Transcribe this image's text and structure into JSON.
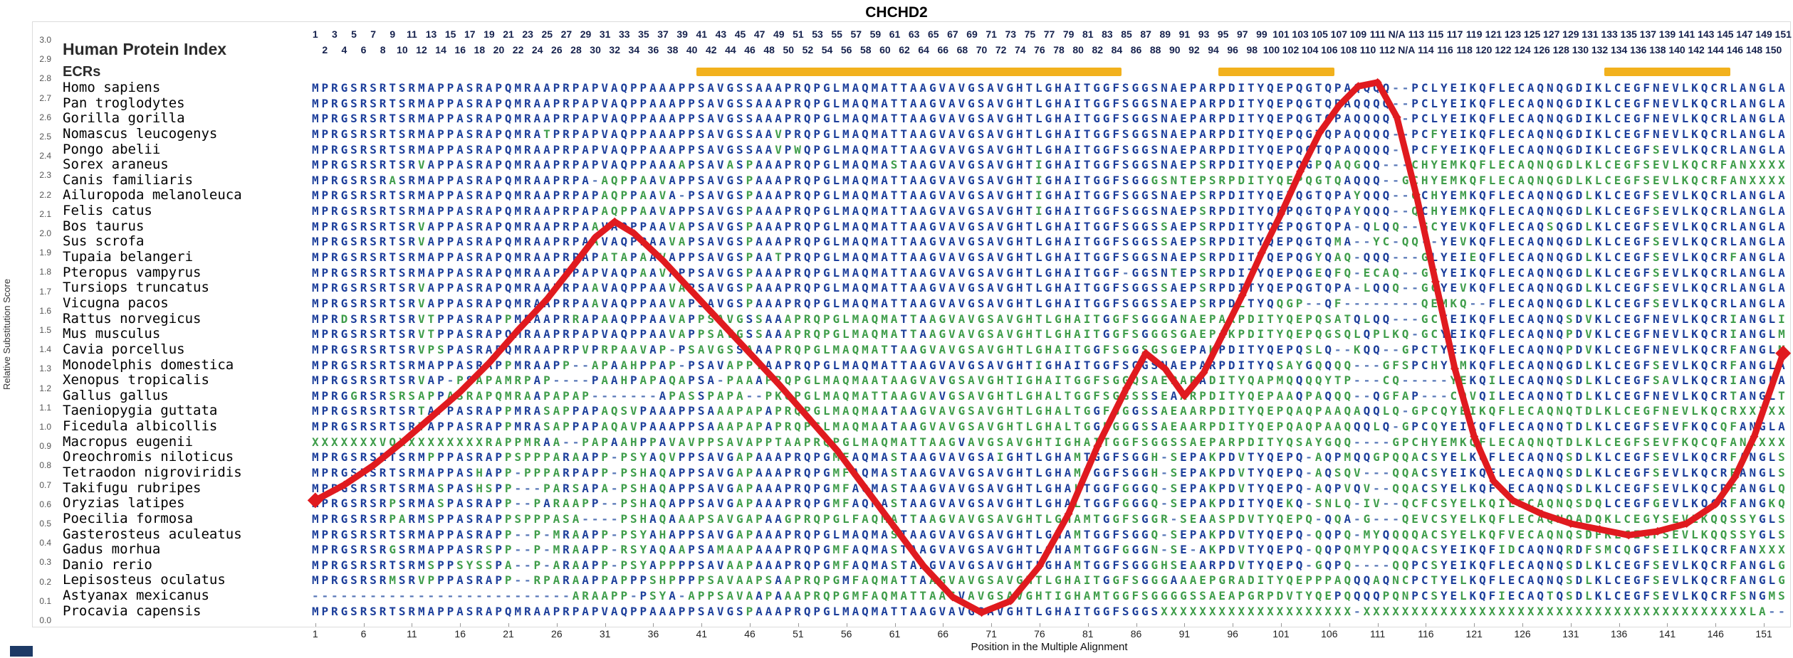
{
  "title": "CHCHD2",
  "header": {
    "index_label": "Human Protein Index",
    "ecr_label": "ECRs"
  },
  "y_axis": {
    "label": "Relative Substitution Score",
    "ticks": [
      "3.0",
      "2.9",
      "2.8",
      "2.7",
      "2.6",
      "2.5",
      "2.4",
      "2.3",
      "2.2",
      "2.1",
      "2.0",
      "1.9",
      "1.8",
      "1.7",
      "1.6",
      "1.5",
      "1.4",
      "1.3",
      "1.2",
      "1.1",
      "1.0",
      "0.9",
      "0.8",
      "0.7",
      "0.6",
      "0.5",
      "0.4",
      "0.3",
      "0.2",
      "0.1",
      "0.0"
    ]
  },
  "x_axis": {
    "label": "Position in the Multiple Alignment",
    "ticks": [
      1,
      6,
      11,
      16,
      21,
      26,
      31,
      36,
      41,
      46,
      51,
      56,
      61,
      66,
      71,
      76,
      81,
      86,
      91,
      96,
      101,
      106,
      111,
      116,
      121,
      126,
      131,
      136,
      141,
      146,
      151
    ]
  },
  "position_numbers": {
    "top": [
      "1",
      "3",
      "5",
      "7",
      "9",
      "11",
      "13",
      "15",
      "17",
      "19",
      "21",
      "23",
      "25",
      "27",
      "29",
      "31",
      "33",
      "35",
      "37",
      "39",
      "41",
      "43",
      "45",
      "47",
      "49",
      "51",
      "53",
      "55",
      "57",
      "59",
      "61",
      "63",
      "65",
      "67",
      "69",
      "71",
      "73",
      "75",
      "77",
      "79",
      "81",
      "83",
      "85",
      "87",
      "89",
      "91",
      "93",
      "95",
      "97",
      "99",
      "101",
      "103",
      "105",
      "107",
      "109",
      "111",
      "N/A",
      "113",
      "115",
      "117",
      "119",
      "121",
      "123",
      "125",
      "127",
      "129",
      "131",
      "133",
      "135",
      "137",
      "139",
      "141",
      "143",
      "145",
      "147",
      "149",
      "151"
    ],
    "bottom": [
      "2",
      "4",
      "6",
      "8",
      "10",
      "12",
      "14",
      "16",
      "18",
      "20",
      "22",
      "24",
      "26",
      "28",
      "30",
      "32",
      "34",
      "36",
      "38",
      "40",
      "42",
      "44",
      "46",
      "48",
      "50",
      "52",
      "54",
      "56",
      "58",
      "60",
      "62",
      "64",
      "66",
      "68",
      "70",
      "72",
      "74",
      "76",
      "78",
      "80",
      "82",
      "84",
      "86",
      "88",
      "90",
      "92",
      "94",
      "96",
      "98",
      "100",
      "102",
      "104",
      "106",
      "108",
      "110",
      "112",
      "N/A",
      "114",
      "116",
      "118",
      "120",
      "122",
      "124",
      "126",
      "128",
      "130",
      "132",
      "134",
      "136",
      "138",
      "140",
      "142",
      "144",
      "146",
      "148",
      "150"
    ]
  },
  "ecr_regions": [
    {
      "start_col": 41,
      "end_col": 84
    },
    {
      "start_col": 95,
      "end_col": 106
    },
    {
      "start_col": 135,
      "end_col": 147
    }
  ],
  "alignment": {
    "rows": [
      {
        "species": "Homo sapiens",
        "sequence": "MPRGSRSRTSRMAPPASRAPQMRAAPRPAPVAQPPAAAPPSAVGSSAAAPRQPGLMAQMATTAAGVAVGSAVGHTLGHAITGGFSGGSNAEPARPDITYQEPQGTQPAQQQQ--PCLYEIKQFLECAQNQGDIKLCEGFNEVLKQCRLANGLA"
      },
      {
        "species": "Pan troglodytes",
        "sequence": "MPRGSRSRTSRMAPPASRAPQMRAAPRPAPVAQPPAAAPPSAVGSSAAAPRQPGLMAQMATTAAGVAVGSAVGHTLGHAITGGFSGGSNAEPARPDITYQEPQGTQPAQQQQ--PCLYEIKQFLECAQNQGDIKLCEGFNEVLKQCRLANGLA"
      },
      {
        "species": "Gorilla gorilla",
        "sequence": "MPRGSRSRTSRMAPPASRAPQMRAAPRPAPVAQPPAAAPPSAVGSSAAAPRQPGLMAQMATTAAGVAVGSAVGHTLGHAITGGFSGGSNAEPARPDITYQEPQGTQPAQQQQ--PCLYEIKQFLECAQNQGDIKLCEGFNEVLKQCRLANGLA"
      },
      {
        "species": "Nomascus leucogenys",
        "sequence": "MPRGSRSRTSRMAPPASRAPQMRATPRPAPVAQPPAAAPPSAVGSSAAVPRQPGLMAQMATTAAGVAVGSAVGHTLGHAITGGFSGGSNAEPARPDITYQEPQGTQPAQQQQ--PCFYEIKQFLECAQNQGDIKLCEGFNEVLKQCRLANGLA"
      },
      {
        "species": "Pongo abelii",
        "sequence": "MPRGSRSRTSRMAPPASRAPQMRAAPRPAPVAQPPAAAPPSAVGSSAAVPWQPGLMAQMATTAAGVAVGSAVGHTLGHAITGGFSGGSNAEPARPDITYQEPQGTQPAQQQQ--PCFYEIKQFLECAQNQGDIKLCEGFSEVLKQCRLANGLA"
      },
      {
        "species": "Sorex araneus",
        "sequence": "MPRGSRSRTSRVAPPASRAPQMRAAPRPAPVAQPPAAAAPSAVASPAAAPRQPGLMAQMASTAAGVAVGSAVGHTIGHAITGGFSGGSNAEPSRPDITYQEPQGPQAQGQQ---CHYEMKQFLECAQNQGDLKLCEGFSEVLKQCRFANXXXX"
      },
      {
        "species": "Canis familiaris",
        "sequence": "MPRGSRSRASRMAPPASRAPQMRAAPRPA-AQPPAAVAPPSAVGSPAAAPRQPGLMAQMATTAAGVAVGSAVGHTIGHAITGGFSGGGSNTEPSRPDITYQEPQGTQAYQQQ--GCHYEMKQFLECAQNQGDLKLCEGFSEVLKQCRFANXXXX"
      },
      {
        "species": "Ailuropoda melanoleuca",
        "sequence": "MPRGSRSRTSRMAPPASRAPQMRAAPRPAPAQPPAAVA-PSAVGSPAAAPRQPGLMAQMATTAAGVAVGSAVGHTIGHAITGGFSGGSNAEPSRPDITYQEPQGTQPAYQQQ--QCHYEMKQFLECAQNQGDLKLCEGFSEVLKQCRLANGLA"
      },
      {
        "species": "Felis catus",
        "sequence": "MPRGSRSRTSRMAPPASRAPQMRAAPRPAPAQPPAAVAPPSAVGSPAAAPRQPGLMAQMATTAAGVAVGSAVGHTIGHAITGGFSGGSNAEPSRPDITYQEPQGTQPAYQQQ--QCHYEMKQFLECAQNQGDLKLCEGFSEVLKQCRLANGLA"
      },
      {
        "species": "Bos taurus",
        "sequence": "MPRGSRSRTSRVAPPASRAPQMRAAPRPAAVAQPPAAVAPSAVGSPAAAPRQPGLMAQMATTAAGVAVGSAVGHTLGHAITGGFSGGSSAEPSRPDITYQEPQGTQPAQLQQ--GCYEVKQFLECAQSQGDLKLCEGFSEVLKQCRLANGLA"
      },
      {
        "species": "Sus scrofa",
        "sequence": "MPRGSRSRTSRVAPPASRAPQMRAAPRPAAVAQPPAAVAPSAVGSPAAAPRQPGLMAQMATTAAGVAVGSAVGHTLGHAITGGFSGGSSAEPSRPDITYQEPQGTQMAYC-QQ--YEVKQFLECAQNQGDLKLCEGFSEVLKQCRLANGLA"
      },
      {
        "species": "Tupaia belangeri",
        "sequence": "MPRGSRSRTSRMAPPASRAPQMRAAPRPAPATAPAAVAPPSAVGSPAATPRQPGLMAQMATTAAGVAVGSAVGHTLGHAITGGFSGGSNAEPSRPDITYQEPQGYQAQQQQ---GLYEIEQFLECAQNQGDLKLCEGFSEVLKQCRFANGLA"
      },
      {
        "species": "Pteropus vampyrus",
        "sequence": "MPRGSRSRTSRMAPPASRAPQMRAAPRPAPVAQPAAVAPPSAVGSPAAAPRQPGLMAQMATTAAGVAVGSAVGHTLGHAITGGF-GGSNTEPSRPDITYQEPQGEQFQ-ECAQ--GCYEIKQFLECAQNQGDLKLCEGFSEVLKQCRLANGLA"
      },
      {
        "species": "Tursiops truncatus",
        "sequence": "MPRGSRSRTSRVAPPASRAPQMRAAPRPAAVAQPPAAVAPSAVGSPAAAPRQPGLMAQMATTAAGVAVGSAVGHTLGHAITGGFSGGSSAEPSRPDITYQEPQGTQPALQQQ--GCYEVKQFLECAQNQGDLKLCEGFSEVLKQCRLANGLA"
      },
      {
        "species": "Vicugna pacos",
        "sequence": "MPRGSRSRTSRVAPPASRAPQMRAAPRPAAVAQPPAAVAPSAVGSPAAAPRQPGLMAQMATTAAGVAVGSAVGHTLGHAITGGFSGGSSAEPSRPDLTYQQGP--QF-QEMKQ--FLECAQNQGDLKLCEGFSEVLKQCRLANGLA"
      },
      {
        "species": "Rattus norvegicus",
        "sequence": "MPRDSRSRTSRVTPPASRAPPMRAAPRRAPAAQPPAAVAPPSAVGSSAAAPRQPGLMAQMATTAAGVAVGSAVGHTLGHAITGGFSGGGANAEPARPDITYQEPQSATQLQQ---GCYEIKQFLECAQNQSDVKLCEGFNEVLKQCRIANGLI"
      },
      {
        "species": "Mus musculus",
        "sequence": "MPRGSRSRTSRVTPPASRAPQMRAAPRPAPVAQPPAAVAPPSAVGSSAAAPRQPGLMAQMATTAAGVAVGSAVGHTLGHAITGGFSGGGSGAEPAKPDITYQEPQGSQLQPLKQ-GCYEIKQFLECAQNQPDVKLCEGFNEVLKQCRIANGLM"
      },
      {
        "species": "Cavia porcellus",
        "sequence": "MPRGSRSRTSRVPSPASRAPQMRAAPRPVPRPAAVAP-PSAVGSSAAAPRQPGLMAQMATTAAGVAVGSAVGHTLGHAITGGFSGGSGSGEPAKPDITYQEPQSLQ--PLKQQ--GPCTYEIKQFLECAQNQPDVKLCEGFNEVLKQCRFANGLM"
      },
      {
        "species": "Monodelphis domestica",
        "sequence": "MPRGSRSRTSRMAPPASRAPPMRAAPP--APAAHPPAP-PSAVAPPTAAPRQPGLMAQMATTAAGVAVGSAVGHTIGHAITGGFSGGSNAEPARPDITYQSAYGQQQQQ----GFSPCHYEMKQFLECAQNQGDLKLCEGFSEVLKQCRFANGLA"
      },
      {
        "species": "Xenopus tropicalis",
        "sequence": "MPRGSRSRTSRVAP-PSAPAMRPAP----PAAHPAPAQAPSA-PAAAPRQPGLMAQMAATAAGVAVGSAVGHTIGHAITGGFSGGQSAEPARADITYQAPMQQQQYTPCQ-----YEKQILECAQNQSDLKLCEGFSAVLKQCRIANGLA"
      },
      {
        "species": "Gallus gallus",
        "sequence": "MPRGGRSRSRSAPPASRAPQMRAAPAPAP-------APASSPAPA--PKQPGLMAQMATTAAGVAVGSAVGHTLGHALTGGFSGGSSSEAARPDITYQEPAAQPAQQQQGFAP---CQVQILECAQNQTDLKLCEGFNEVLKQCRTANGLT"
      },
      {
        "species": "Taeniopygia guttata",
        "sequence": "MPRGSRSRTSRTAPPASRAPPMRASAPPAPAQSVPAAAPPSAAAPAPAPRQPGLMAQMAATAAGVAVGSAVGHTLGHALTGGFGGGSSAEAARPDITYQEPQAQPAAQAAQQLQ-GPCQYEIKQFLECAQNQTDLKLCEGFNEVLKQCRXXXXX"
      },
      {
        "species": "Ficedula albicollis",
        "sequence": "MPRGSRSRTSRTAPPASRAPPMRASAPPAPAQAVPAAAPPSAAAPAPAPRQPGLMAQMAATAAGVAVGSAVGHTLGHALTGGFGGGSSAEAARPDITYQEPQAQPAAQAAQQLQ-GPCQYEIKQFLECAQNQTDLKLCEGFSEVFKQCQFANGLA"
      },
      {
        "species": "Macropus eugenii",
        "sequence": "XXXXXXXVQXXXXXXXXXRAPPMRAA--PAPAAHPPAVAVPPSAVAPPTAAPRQPGLMAQMATTAAGVAVGSAVGHTIGHAITGGFSGGSSAEPARPDITYQSAYGQQQQ----GPCHYEMKQFLECAQNQTDLKLCEGFSEVFKQCQFANXXXX"
      },
      {
        "species": "Oreochromis niloticus",
        "sequence": "MPRGSRSRTSRMPPPASRAPPSPPPARAAPP-PSYAQVPPSAVGAPAAAPRQPGMFAQMASTAAGVAVGSAIGHTLGHAMTGGFSGGH-SEPAKPDVTYQEPQ-AQPMQQGPQQACSYELKQFLECAQNQSDLKLCEGFSEVLKQCRFANGLS"
      },
      {
        "species": "Tetraodon nigroviridis",
        "sequence": "MPRGSRSRTSRMAPPASHAPP-PPPARPAPP-PSHAQAPPSAVGAPAAAPRQPGMFAQMASTAAGVAVGSAVGHTLGHAMTGGFSGGH-SEPAKPDVTYQEPQ-AQSQV---QQACSYEIKQFLECAQNQSDLKLCEGFSEVLKQCRFANGLS"
      },
      {
        "species": "Takifugu rubripes",
        "sequence": "MPRGSRSRTSRMASPASHSPP---PARSAPA-PSHAQAPPSAVGAPAAAPRQPGMFAQMASTAAGVAVGSAVGHTLGHALTGGFGGGQ-SEPAKPDVTYQEPQ-AQPVQV--QQACSYELKQFLECAQNQSDLKLCEGFSEVLKQCRFANGLQ"
      },
      {
        "species": "Oryzias latipes",
        "sequence": "MPRGSRSRPSRMASPASRAPP--PARAAPP--PSHAQAPPSAVGAPAAAPRQPGMFAQMASTAAGVAVGSAVGHTLGHALTGGFGGGQ-SEPAKPDITYQEKQ-SNLQIV--QCFCSYELKQILECAQNQSDQLCEGFGEVLKQCRFANGKQ"
      },
      {
        "species": "Poecilia formosa",
        "sequence": "MPRGSRSRPARMSPPASRAPPSPPPASA----PSHAQAAAPSAVGAPAAGPRQPGLFAQMATTAAGVAVGSAVGHTLGHAMTGGFSGGR-SEAASPDVTYQEPQ-QQAG---QEVCSYELKQFLECAQNQADQKLCEGYSEVLKQQSSYGLS"
      },
      {
        "species": "Gasterosteus aculeatus",
        "sequence": "MPRGSRSRTSRMAPPASRAPP--P-MRAAPP-PSYAHAPPSAVGAPAAAPRQPGLMAQMASTAAGVAVGSAVGHTLGHAMTGGFSGGQ-SEPAKPDVTYQEPQ-QQPQMYQQQQACSYELKQFVECAQNQSDFKLCEGFSEVLKQQSSYGLS"
      },
      {
        "species": "Gadus morhua",
        "sequence": "MPRGSRSRGSRMAPPASRSPP--P-MRAAPP-RSYAQAAPSAMAAPAAAPRQPGMFAQMASTAAGVAVGSAVGHTLGHAMTGGFGGGN-SE-AKPDVTYQEPQ-QQPQMYPQQQACSYEIKQFIDCAQNQRDFSMCQGFSEILKQCRFANXXX"
      },
      {
        "species": "Danio rerio",
        "sequence": "MPRGSRSRTSRMSPPSYSSPA--P-ARAAPP-PSYAPPPPSAVAAPAAAPRQPGMFAQMASTAAGVAVGSAVGHTLGHAMTGGFSGGGHSEAARPDVTYQEPQ-GQPQ---QQPCSYEIKQFLECAQNQSDLKLCEGFSEVLKQCRFANGLG"
      },
      {
        "species": "Lepisosteus oculatus",
        "sequence": "MPRGSRSRMSRVPPPASRAPP--RPARAAPPAPPPSHPPPPSAVAAPSAAPRQPGMFAQMATTAAGVAVGSAVGHTLGHAITGGFSGGGAAAEPGRADITYQEPPPAQPMQQAQNCPCTYELKQFLECAQNQSDLKLCEGFSEVLKQCRFANGLG"
      },
      {
        "species": "Astyanax mexicanus",
        "sequence": "---------------------------ARAAPP-PSYA-APPSAVAAPAAAPRQPGMFAQMATTAAGVAVGSAVGHTIGHAMTGGFSGGGGSSAEAPGRPDVTYQEPQ-AQPMQQQQPQNPCSYELKQFIECAQTQSDLKLCEGFSEVLKQCRFSNGMS"
      },
      {
        "species": "Procavia capensis",
        "sequence": "MPRGSRSRTSRMAPPASRAPQMRAAPRPAPVAQPPAAAPPSAVGSPAAAPRQPGLMAQMATTAAGVAVGSAVGHTLGHAITGGFSGGSXXXXXXXXXXXXXXXXXXXXXXXXXXXXXXXXXXXXXXXXXXXXXXXXXXXXXXXXXXXXLA--"
      }
    ]
  },
  "chart_data": {
    "type": "line",
    "title": "CHCHD2",
    "xlabel": "Position in the Multiple Alignment",
    "ylabel": "Relative Substitution Score",
    "xlim": [
      1,
      153
    ],
    "ylim": [
      0,
      3.0
    ],
    "grid": false,
    "legend_position": "none",
    "ecr_highlighted_columns": [
      [
        41,
        84
      ],
      [
        95,
        106
      ],
      [
        135,
        147
      ]
    ],
    "series": [
      {
        "name": "Relative Substitution Score",
        "color": "#e01a1f",
        "points": [
          [
            1,
            0.62
          ],
          [
            4,
            0.7
          ],
          [
            7,
            0.8
          ],
          [
            10,
            0.92
          ],
          [
            13,
            1.05
          ],
          [
            16,
            1.18
          ],
          [
            19,
            1.33
          ],
          [
            22,
            1.5
          ],
          [
            25,
            1.66
          ],
          [
            28,
            1.85
          ],
          [
            30,
            1.98
          ],
          [
            32,
            2.06
          ],
          [
            34,
            2.0
          ],
          [
            37,
            1.86
          ],
          [
            40,
            1.7
          ],
          [
            43,
            1.54
          ],
          [
            46,
            1.38
          ],
          [
            49,
            1.22
          ],
          [
            52,
            1.05
          ],
          [
            55,
            0.88
          ],
          [
            58,
            0.68
          ],
          [
            61,
            0.48
          ],
          [
            64,
            0.28
          ],
          [
            67,
            0.12
          ],
          [
            70,
            0.04
          ],
          [
            73,
            0.1
          ],
          [
            76,
            0.28
          ],
          [
            79,
            0.55
          ],
          [
            82,
            0.9
          ],
          [
            85,
            1.2
          ],
          [
            87,
            1.38
          ],
          [
            89,
            1.3
          ],
          [
            91,
            1.16
          ],
          [
            93,
            1.28
          ],
          [
            95,
            1.48
          ],
          [
            97,
            1.68
          ],
          [
            99,
            1.9
          ],
          [
            101,
            2.1
          ],
          [
            103,
            2.32
          ],
          [
            105,
            2.52
          ],
          [
            107,
            2.66
          ],
          [
            109,
            2.76
          ],
          [
            111,
            2.78
          ],
          [
            113,
            2.6
          ],
          [
            115,
            2.2
          ],
          [
            117,
            1.75
          ],
          [
            119,
            1.3
          ],
          [
            121,
            0.95
          ],
          [
            123,
            0.72
          ],
          [
            125,
            0.62
          ],
          [
            128,
            0.55
          ],
          [
            131,
            0.5
          ],
          [
            134,
            0.47
          ],
          [
            137,
            0.44
          ],
          [
            140,
            0.46
          ],
          [
            143,
            0.5
          ],
          [
            146,
            0.6
          ],
          [
            148,
            0.74
          ],
          [
            150,
            0.95
          ],
          [
            153,
            1.38
          ]
        ]
      }
    ]
  },
  "colors": {
    "conserved": "#1d3f9b",
    "substitution": "#3f9d4a",
    "gap": "#5a79b8",
    "unknown": "#3f9d4a",
    "curve": "#e01a1f",
    "ecr_bar": "#f2b11d"
  }
}
